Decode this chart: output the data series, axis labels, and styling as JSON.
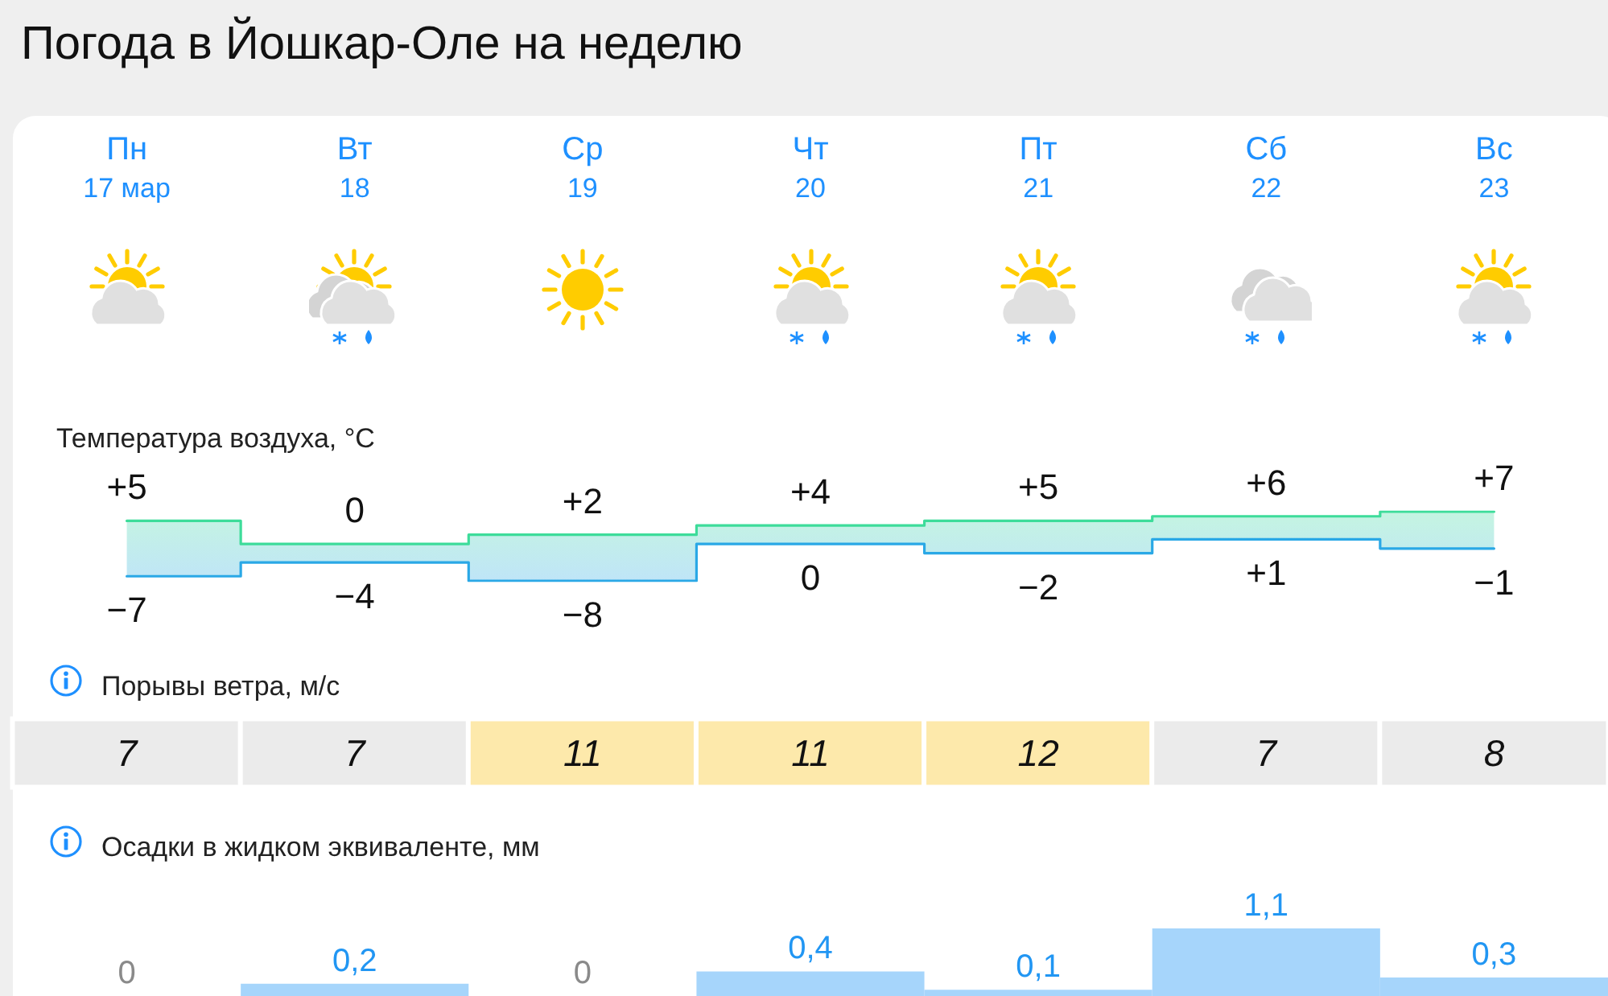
{
  "chart_data": [
    {
      "type": "step",
      "title": "Погода в Йошкар-Оле на неделю",
      "ylabel": "Температура воздуха, °C",
      "categories": [
        "Пн\n17 мар",
        "Вт\n18",
        "Ср\n19",
        "Чт\n20",
        "Пт\n21",
        "Сб\n22",
        "Вс\n23"
      ],
      "series": [
        {
          "color": "#3ddc9a",
          "values": [
            5,
            0,
            2,
            4,
            5,
            6,
            7
          ],
          "value_labels": [
            "+5",
            "0",
            "+2",
            "+4",
            "+5",
            "+6",
            "+7"
          ],
          "lower": [
            -7,
            -4,
            -8,
            0,
            -2,
            1,
            -1
          ],
          "upper": [
            5,
            0,
            2,
            4,
            5,
            6,
            7
          ]
        },
        {
          "color": "#2aa8e6",
          "values": [
            -7,
            -4,
            -8,
            0,
            -2,
            1,
            -1
          ],
          "value_labels": [
            "−7",
            "−4",
            "−8",
            "0",
            "−2",
            "+1",
            "−1"
          ]
        }
      ],
      "tick_labels": "x"
    },
    {
      "type": "heatmap",
      "title": "Порывы ветра, м/с",
      "categories": [
        null,
        null,
        null,
        null,
        null,
        null,
        null
      ],
      "y_categories": [
        null
      ],
      "cells": [
        [
          7,
          7,
          11,
          11,
          12,
          7,
          8
        ]
      ],
      "colors": [
        "#ebebeb",
        "#ebebeb",
        "#fde9ab",
        "#fde9ab",
        "#fde9ab",
        "#ebebeb",
        "#ebebeb"
      ],
      "data_labels": true,
      "tick_labels": false
    },
    {
      "type": "bar",
      "title": "Осадки в жидком эквиваленте, мм",
      "categories": [
        null,
        null,
        null,
        null,
        null,
        null,
        null
      ],
      "values": [
        0,
        0.2,
        0,
        0.4,
        0.1,
        1.1,
        0.3
      ],
      "value_labels": [
        "0",
        "0,2",
        "0",
        "0,4",
        "0,1",
        "1,1",
        "0,3"
      ],
      "color": "#a6d5fb",
      "tick_labels": false
    }
  ]
}
